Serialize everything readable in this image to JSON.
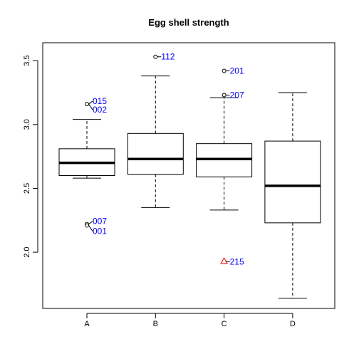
{
  "chart_data": {
    "type": "box",
    "title": "Egg shell strength",
    "xlabel": "",
    "ylabel": "",
    "categories": [
      "A",
      "B",
      "C",
      "D"
    ],
    "ylim": [
      1.56,
      3.64
    ],
    "yticks": [
      2.0,
      2.5,
      3.0,
      3.5
    ],
    "ytick_labels": [
      "2.0",
      "2.5",
      "3.0",
      "3.5"
    ],
    "grid": false,
    "boxes": [
      {
        "category": "A",
        "whisker_low": 2.58,
        "q1": 2.6,
        "median": 2.7,
        "q3": 2.81,
        "whisker_high": 3.04
      },
      {
        "category": "B",
        "whisker_low": 2.35,
        "q1": 2.61,
        "median": 2.73,
        "q3": 2.93,
        "whisker_high": 3.38
      },
      {
        "category": "C",
        "whisker_low": 2.33,
        "q1": 2.59,
        "median": 2.73,
        "q3": 2.85,
        "whisker_high": 3.21
      },
      {
        "category": "D",
        "whisker_low": 1.64,
        "q1": 2.23,
        "median": 2.52,
        "q3": 2.87,
        "whisker_high": 3.25
      }
    ],
    "outliers": [
      {
        "category": "A",
        "y": 3.16,
        "label": "015",
        "label_dy": -4,
        "marker": "circle",
        "label_color": "#0000ff"
      },
      {
        "category": "A",
        "y": 3.16,
        "label": "002",
        "label_dy": 8,
        "marker": "circle",
        "label_color": "#0000ff"
      },
      {
        "category": "A",
        "y": 2.22,
        "label": "007",
        "label_dy": -4,
        "marker": "circle",
        "label_color": "#0000ff"
      },
      {
        "category": "A",
        "y": 2.21,
        "label": "001",
        "label_dy": 8,
        "marker": "circle",
        "label_color": "#0000ff"
      },
      {
        "category": "B",
        "y": 3.53,
        "label": "112",
        "label_dy": 0,
        "marker": "circle",
        "label_color": "#0000ff"
      },
      {
        "category": "C",
        "y": 3.42,
        "label": "201",
        "label_dy": 0,
        "marker": "circle",
        "label_color": "#0000ff"
      },
      {
        "category": "C",
        "y": 3.23,
        "label": "207",
        "label_dy": 0,
        "marker": "circle",
        "label_color": "#0000ff"
      },
      {
        "category": "C",
        "y": 1.93,
        "label": "215",
        "label_dy": 1,
        "marker": "triangle",
        "marker_color": "#ff0000",
        "label_color": "#0000ff"
      }
    ]
  }
}
